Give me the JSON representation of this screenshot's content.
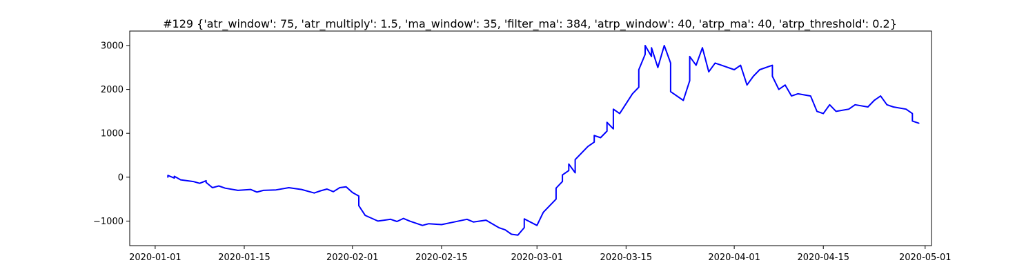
{
  "chart_data": {
    "type": "line",
    "title": "#129 {'atr_window': 75, 'atr_multiply': 1.5, 'ma_window': 35, 'filter_ma': 384, 'atrp_window': 40, 'atrp_ma': 40, 'atrp_threshold': 0.2}",
    "xlabel": "",
    "ylabel": "",
    "x_type": "date",
    "xlim": [
      "2019-12-28",
      "2020-05-02"
    ],
    "ylim": [
      -1560,
      3330
    ],
    "x_ticks": [
      "2020-01-01",
      "2020-01-15",
      "2020-02-01",
      "2020-02-15",
      "2020-03-01",
      "2020-03-15",
      "2020-04-01",
      "2020-04-15",
      "2020-05-01"
    ],
    "x_tick_labels": [
      "2020-01-01",
      "2020-01-15",
      "2020-02-01",
      "2020-02-15",
      "2020-03-01",
      "2020-03-15",
      "2020-04-01",
      "2020-04-15",
      "2020-05-01"
    ],
    "y_ticks": [
      -1000,
      0,
      1000,
      2000,
      3000
    ],
    "y_tick_labels": [
      "−1000",
      "0",
      "1000",
      "2000",
      "3000"
    ],
    "grid": false,
    "legend": "none",
    "series": [
      {
        "color": "#0000ff",
        "points": [
          [
            "2020-01-03",
            0
          ],
          [
            "2020-01-03",
            40
          ],
          [
            "2020-01-04",
            -20
          ],
          [
            "2020-01-04",
            20
          ],
          [
            "2020-01-05",
            -60
          ],
          [
            "2020-01-07",
            -100
          ],
          [
            "2020-01-08",
            -140
          ],
          [
            "2020-01-09",
            -80
          ],
          [
            "2020-01-09",
            -120
          ],
          [
            "2020-01-10",
            -240
          ],
          [
            "2020-01-11",
            -200
          ],
          [
            "2020-01-12",
            -250
          ],
          [
            "2020-01-14",
            -300
          ],
          [
            "2020-01-16",
            -280
          ],
          [
            "2020-01-17",
            -340
          ],
          [
            "2020-01-18",
            -300
          ],
          [
            "2020-01-20",
            -290
          ],
          [
            "2020-01-22",
            -240
          ],
          [
            "2020-01-24",
            -280
          ],
          [
            "2020-01-26",
            -360
          ],
          [
            "2020-01-27",
            -310
          ],
          [
            "2020-01-28",
            -270
          ],
          [
            "2020-01-29",
            -330
          ],
          [
            "2020-01-30",
            -240
          ],
          [
            "2020-01-31",
            -220
          ],
          [
            "2020-02-01",
            -350
          ],
          [
            "2020-02-02",
            -430
          ],
          [
            "2020-02-02",
            -650
          ],
          [
            "2020-02-03",
            -870
          ],
          [
            "2020-02-05",
            -1000
          ],
          [
            "2020-02-06",
            -980
          ],
          [
            "2020-02-07",
            -960
          ],
          [
            "2020-02-08",
            -1010
          ],
          [
            "2020-02-09",
            -940
          ],
          [
            "2020-02-10",
            -1000
          ],
          [
            "2020-02-12",
            -1100
          ],
          [
            "2020-02-13",
            -1060
          ],
          [
            "2020-02-15",
            -1080
          ],
          [
            "2020-02-17",
            -1020
          ],
          [
            "2020-02-19",
            -960
          ],
          [
            "2020-02-20",
            -1020
          ],
          [
            "2020-02-22",
            -980
          ],
          [
            "2020-02-24",
            -1150
          ],
          [
            "2020-02-25",
            -1200
          ],
          [
            "2020-02-26",
            -1300
          ],
          [
            "2020-02-27",
            -1320
          ],
          [
            "2020-02-28",
            -1150
          ],
          [
            "2020-02-28",
            -950
          ],
          [
            "2020-03-01",
            -1100
          ],
          [
            "2020-03-02",
            -800
          ],
          [
            "2020-03-03",
            -650
          ],
          [
            "2020-03-04",
            -500
          ],
          [
            "2020-03-04",
            -250
          ],
          [
            "2020-03-05",
            -100
          ],
          [
            "2020-03-05",
            50
          ],
          [
            "2020-03-06",
            150
          ],
          [
            "2020-03-06",
            300
          ],
          [
            "2020-03-07",
            100
          ],
          [
            "2020-03-07",
            400
          ],
          [
            "2020-03-08",
            550
          ],
          [
            "2020-03-09",
            700
          ],
          [
            "2020-03-10",
            800
          ],
          [
            "2020-03-10",
            950
          ],
          [
            "2020-03-11",
            900
          ],
          [
            "2020-03-12",
            1050
          ],
          [
            "2020-03-12",
            1250
          ],
          [
            "2020-03-13",
            1100
          ],
          [
            "2020-03-13",
            1550
          ],
          [
            "2020-03-14",
            1450
          ],
          [
            "2020-03-16",
            1900
          ],
          [
            "2020-03-17",
            2050
          ],
          [
            "2020-03-17",
            2450
          ],
          [
            "2020-03-18",
            2800
          ],
          [
            "2020-03-18",
            3000
          ],
          [
            "2020-03-19",
            2750
          ],
          [
            "2020-03-19",
            2950
          ],
          [
            "2020-03-20",
            2500
          ],
          [
            "2020-03-21",
            3000
          ],
          [
            "2020-03-22",
            2600
          ],
          [
            "2020-03-22",
            1950
          ],
          [
            "2020-03-24",
            1750
          ],
          [
            "2020-03-25",
            2200
          ],
          [
            "2020-03-25",
            2750
          ],
          [
            "2020-03-26",
            2550
          ],
          [
            "2020-03-27",
            2950
          ],
          [
            "2020-03-28",
            2400
          ],
          [
            "2020-03-29",
            2600
          ],
          [
            "2020-03-30",
            2550
          ],
          [
            "2020-04-01",
            2450
          ],
          [
            "2020-04-02",
            2550
          ],
          [
            "2020-04-03",
            2100
          ],
          [
            "2020-04-04",
            2300
          ],
          [
            "2020-04-05",
            2450
          ],
          [
            "2020-04-07",
            2550
          ],
          [
            "2020-04-07",
            2300
          ],
          [
            "2020-04-08",
            2000
          ],
          [
            "2020-04-09",
            2100
          ],
          [
            "2020-04-10",
            1850
          ],
          [
            "2020-04-11",
            1900
          ],
          [
            "2020-04-13",
            1850
          ],
          [
            "2020-04-14",
            1500
          ],
          [
            "2020-04-15",
            1450
          ],
          [
            "2020-04-16",
            1650
          ],
          [
            "2020-04-17",
            1500
          ],
          [
            "2020-04-19",
            1550
          ],
          [
            "2020-04-20",
            1650
          ],
          [
            "2020-04-22",
            1600
          ],
          [
            "2020-04-23",
            1750
          ],
          [
            "2020-04-24",
            1850
          ],
          [
            "2020-04-25",
            1650
          ],
          [
            "2020-04-26",
            1600
          ],
          [
            "2020-04-28",
            1550
          ],
          [
            "2020-04-29",
            1450
          ],
          [
            "2020-04-29",
            1280
          ],
          [
            "2020-04-30",
            1230
          ]
        ]
      }
    ]
  }
}
